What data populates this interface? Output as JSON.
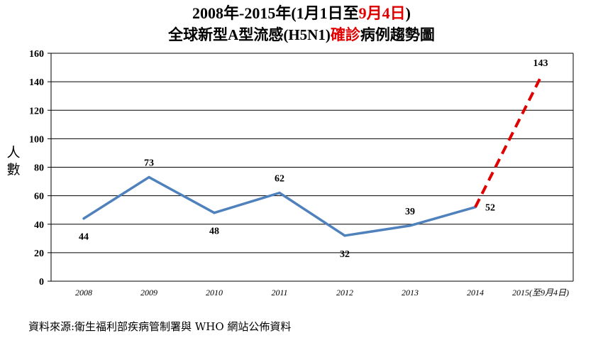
{
  "title": {
    "line1_prefix": "2008年-2015年(1月1日至",
    "line1_highlight": "9月4日",
    "line1_suffix": ")",
    "line2_prefix": "全球新型A型流感(H5N1)",
    "line2_highlight": "確診",
    "line2_suffix": "病例趨勢圖"
  },
  "ylabel_chars": [
    "人",
    "數"
  ],
  "source": "資料來源:衛生福利部疾病管制署與 WHO 網站公佈資料",
  "colors": {
    "line": "#4f81bd",
    "projection": "#e00000",
    "highlight": "#e00000"
  },
  "chart_data": {
    "type": "line",
    "categories": [
      "2008",
      "2009",
      "2010",
      "2011",
      "2012",
      "2013",
      "2014",
      "2015(至9月4日)"
    ],
    "series": [
      {
        "values": [
          44,
          73,
          48,
          62,
          32,
          39,
          52,
          143
        ]
      }
    ],
    "dashed_segment": {
      "from_index": 6,
      "to_index": 7
    },
    "ylim": [
      0,
      160
    ],
    "yticks": [
      0,
      20,
      40,
      60,
      80,
      100,
      120,
      140,
      160
    ],
    "grid": true,
    "legend": "none"
  }
}
